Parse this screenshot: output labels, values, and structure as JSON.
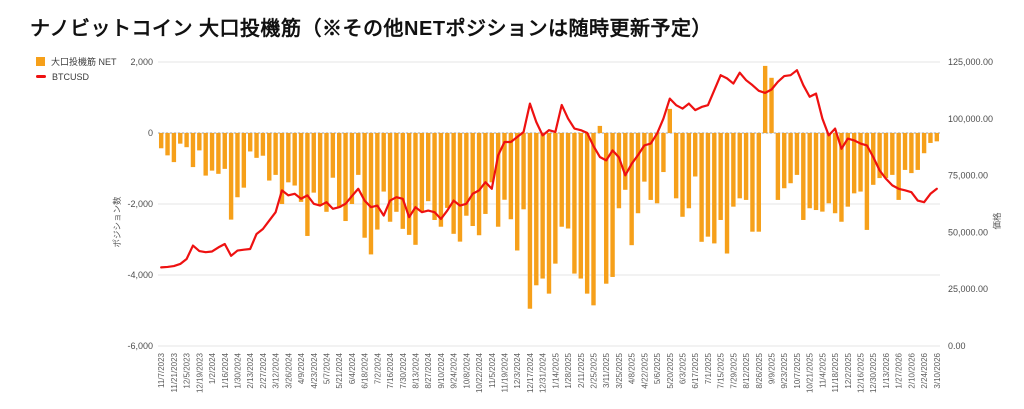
{
  "title": "ナノビットコイン 大口投機筋（※その他NETポジションは随時更新予定）",
  "legend": {
    "items": [
      {
        "label": "大口投機筋 NET",
        "color": "#F6A01A",
        "type": "square"
      },
      {
        "label": "BTCUSD",
        "color": "#EE1111",
        "type": "line"
      }
    ]
  },
  "left_axis": {
    "title": "ポジション数",
    "ticks": [
      "2,000",
      "0",
      "-2,000",
      "-4,000",
      "-6,000"
    ],
    "tick_values": [
      2000,
      0,
      -2000,
      -4000,
      -6000
    ],
    "max": 2000,
    "min": -6000
  },
  "right_axis": {
    "title": "価格",
    "ticks": [
      "125,000.00",
      "100,000.00",
      "75,000.00",
      "50,000.00",
      "25,000.00",
      "0.00"
    ],
    "tick_values": [
      125000,
      100000,
      75000,
      50000,
      25000,
      0
    ],
    "max": 125000,
    "min": 0
  },
  "chart_data": {
    "type": "combo",
    "label_every": 2,
    "x_tick_labels": [
      "11/7/2023",
      "11/21/2023",
      "12/5/2023",
      "12/19/2023",
      "1/2/2024",
      "1/16/2024",
      "1/30/2024",
      "2/13/2024",
      "2/27/2024",
      "3/12/2024",
      "3/26/2024",
      "4/9/2024",
      "4/23/2024",
      "5/7/2024",
      "5/21/2024",
      "6/4/2024",
      "6/18/2024",
      "7/2/2024",
      "7/16/2024",
      "7/30/2024",
      "8/13/2024",
      "8/27/2024",
      "9/10/2024",
      "9/24/2024",
      "10/8/2024",
      "10/22/2024",
      "11/5/2024",
      "11/19/2024",
      "12/3/2024",
      "12/17/2024",
      "12/31/2024",
      "1/14/2025",
      "1/28/2025",
      "2/11/2025",
      "2/25/2025",
      "3/11/2025",
      "3/25/2025",
      "4/8/2025",
      "4/22/2025",
      "5/6/2025",
      "5/20/2025",
      "6/3/2025",
      "6/17/2025",
      "7/1/2025",
      "7/15/2025",
      "7/29/2025",
      "8/12/2025",
      "8/26/2025",
      "9/9/2025",
      "9/23/2025",
      "10/7/2025",
      "10/21/2025",
      "11/4/2025",
      "11/18/2025",
      "12/2/2025",
      "12/16/2025",
      "12/30/2025",
      "1/13/2026",
      "1/27/2026",
      "2/10/2026",
      "2/24/2026",
      "3/10/2026"
    ],
    "series": [
      {
        "name": "大口投機筋 NET",
        "type": "bar",
        "axis": "left",
        "color": "#F6A01A",
        "values": [
          -430,
          -630,
          -820,
          -300,
          -400,
          -960,
          -490,
          -1200,
          -1060,
          -1150,
          -1010,
          -2440,
          -1810,
          -1540,
          -520,
          -700,
          -640,
          -1340,
          -1180,
          -2000,
          -1390,
          -1480,
          -1940,
          -2900,
          -1680,
          -2020,
          -2220,
          -1260,
          -2110,
          -2480,
          -2000,
          -1180,
          -2950,
          -3420,
          -2720,
          -1650,
          -2500,
          -2220,
          -2700,
          -2870,
          -3150,
          -2200,
          -1920,
          -2450,
          -2640,
          -2110,
          -2840,
          -3060,
          -2330,
          -2620,
          -2880,
          -2280,
          -1390,
          -2640,
          -1880,
          -2430,
          -3310,
          -2150,
          -4950,
          -4290,
          -4100,
          -4525,
          -3680,
          -2640,
          -2690,
          -3960,
          -4100,
          -4525,
          -4855,
          200,
          -4245,
          -4055,
          -2120,
          -1600,
          -3160,
          -2260,
          -1370,
          -1885,
          -1980,
          -1100,
          680,
          -1840,
          -2360,
          -2120,
          -1225,
          -3065,
          -2920,
          -3110,
          -2450,
          -3395,
          -2075,
          -1840,
          -1885,
          -2780,
          -2780,
          1890,
          1555,
          -1885,
          -1556,
          -1415,
          -1180,
          -2450,
          -2120,
          -2170,
          -2215,
          -1980,
          -2260,
          -2500,
          -2075,
          -1700,
          -1650,
          -2730,
          -1460,
          -1270,
          -1270,
          -1180,
          -1885,
          -1040,
          -1130,
          -1040,
          -570,
          -280,
          -235
        ]
      },
      {
        "name": "BTCUSD",
        "type": "line",
        "axis": "right",
        "color": "#EE1111",
        "values": [
          34600,
          34800,
          35200,
          36100,
          38300,
          44200,
          41800,
          41300,
          41600,
          43400,
          44900,
          39700,
          42000,
          42400,
          42700,
          49300,
          51500,
          55200,
          58900,
          68500,
          66300,
          67000,
          64800,
          66300,
          62600,
          61800,
          63300,
          60400,
          61100,
          62600,
          66000,
          69200,
          64000,
          61100,
          61800,
          57400,
          64000,
          65500,
          64800,
          56700,
          61100,
          58900,
          59600,
          58900,
          55900,
          59600,
          64000,
          61800,
          62600,
          67000,
          68500,
          72100,
          69200,
          83900,
          89800,
          89800,
          92000,
          94200,
          106700,
          98600,
          92700,
          95000,
          94200,
          106100,
          100100,
          95700,
          95000,
          93800,
          88000,
          83200,
          81700,
          86100,
          83000,
          75100,
          80200,
          84000,
          88300,
          89100,
          93500,
          100100,
          108900,
          106000,
          104500,
          106700,
          103800,
          105200,
          106000,
          112600,
          119200,
          117800,
          115500,
          120300,
          117000,
          114800,
          112300,
          111400,
          112900,
          116300,
          118800,
          119200,
          121400,
          114800,
          109700,
          111100,
          100100,
          92700,
          95700,
          86800,
          91300,
          90500,
          89100,
          88300,
          83200,
          77300,
          73600,
          70700,
          69200,
          68500,
          67700,
          64000,
          63300,
          67000,
          69200
        ]
      }
    ]
  },
  "colors": {
    "grid": "#E6E6E6",
    "zero_baseline": "#9E9E9E",
    "axis_tick_text": "#4D4D4D",
    "x_label_text": "#5C5C5C",
    "axis_title_text": "#555555",
    "title_text": "#111111",
    "background": "#FFFFFF"
  }
}
